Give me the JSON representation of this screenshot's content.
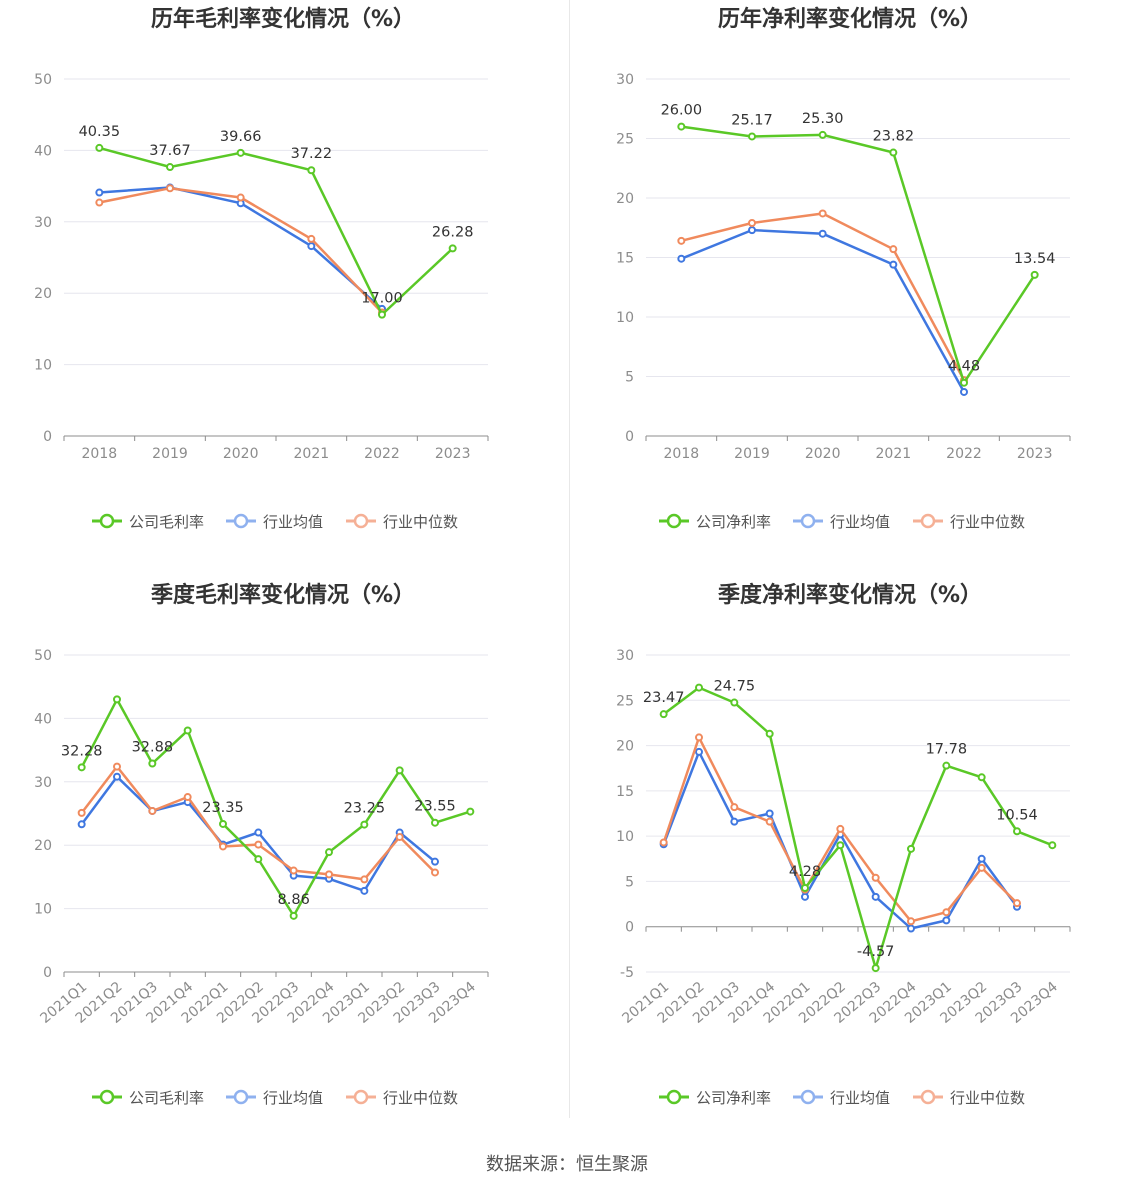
{
  "colors": {
    "company": "#5ac827",
    "avg": "#3f77e0",
    "median": "#f08a5d",
    "legend_avg": "#8fb1ef",
    "legend_median": "#f5b096"
  },
  "source": "数据来源：恒生聚源",
  "chart_data": [
    {
      "type": "line",
      "title": "历年毛利率变化情况（%）",
      "categories": [
        "2018",
        "2019",
        "2020",
        "2021",
        "2022",
        "2023"
      ],
      "ylim": [
        0,
        50
      ],
      "yticks": [
        0,
        10,
        20,
        30,
        40,
        50
      ],
      "grid": true,
      "legend_position": "bottom",
      "legend": [
        "公司毛利率",
        "行业均值",
        "行业中位数"
      ],
      "series": [
        {
          "name": "公司毛利率",
          "values": [
            40.35,
            37.67,
            39.66,
            37.22,
            17.0,
            26.28
          ],
          "labels": [
            "40.35",
            "37.67",
            "39.66",
            "37.22",
            "17.00",
            "26.28"
          ]
        },
        {
          "name": "行业均值",
          "values": [
            34.1,
            34.8,
            32.6,
            26.6,
            17.8,
            null
          ]
        },
        {
          "name": "行业中位数",
          "values": [
            32.7,
            34.7,
            33.4,
            27.6,
            17.3,
            null
          ]
        }
      ]
    },
    {
      "type": "line",
      "title": "历年净利率变化情况（%）",
      "categories": [
        "2018",
        "2019",
        "2020",
        "2021",
        "2022",
        "2023"
      ],
      "ylim": [
        0,
        30
      ],
      "yticks": [
        0,
        5,
        10,
        15,
        20,
        25,
        30
      ],
      "grid": true,
      "legend_position": "bottom",
      "legend": [
        "公司净利率",
        "行业均值",
        "行业中位数"
      ],
      "series": [
        {
          "name": "公司净利率",
          "values": [
            26.0,
            25.17,
            25.3,
            23.82,
            4.48,
            13.54
          ],
          "labels": [
            "26.00",
            "25.17",
            "25.30",
            "23.82",
            "4.48",
            "13.54"
          ]
        },
        {
          "name": "行业均值",
          "values": [
            14.9,
            17.3,
            17.0,
            14.4,
            3.7,
            null
          ]
        },
        {
          "name": "行业中位数",
          "values": [
            16.4,
            17.9,
            18.7,
            15.7,
            4.7,
            null
          ]
        }
      ]
    },
    {
      "type": "line",
      "title": "季度毛利率变化情况（%）",
      "categories": [
        "2021Q1",
        "2021Q2",
        "2021Q3",
        "2021Q4",
        "2022Q1",
        "2022Q2",
        "2022Q3",
        "2022Q4",
        "2023Q1",
        "2023Q2",
        "2023Q3",
        "2023Q4"
      ],
      "ylim": [
        0,
        50
      ],
      "yticks": [
        0,
        10,
        20,
        30,
        40,
        50
      ],
      "grid": true,
      "legend_position": "bottom",
      "legend": [
        "公司毛利率",
        "行业均值",
        "行业中位数"
      ],
      "series": [
        {
          "name": "公司毛利率",
          "values": [
            32.28,
            43.0,
            32.88,
            38.1,
            23.35,
            17.8,
            8.86,
            18.9,
            23.25,
            31.8,
            23.55,
            25.3
          ],
          "labels": [
            "32.28",
            "",
            "32.88",
            "",
            "23.35",
            "",
            "8.86",
            "",
            "23.25",
            "",
            "23.55",
            ""
          ]
        },
        {
          "name": "行业均值",
          "values": [
            23.3,
            30.8,
            25.4,
            26.8,
            20.1,
            22.0,
            15.2,
            14.7,
            12.8,
            22.0,
            17.4,
            null
          ]
        },
        {
          "name": "行业中位数",
          "values": [
            25.1,
            32.4,
            25.4,
            27.6,
            19.8,
            20.1,
            16.0,
            15.4,
            14.6,
            21.3,
            15.7,
            null
          ]
        }
      ]
    },
    {
      "type": "line",
      "title": "季度净利率变化情况（%）",
      "categories": [
        "2021Q1",
        "2021Q2",
        "2021Q3",
        "2021Q4",
        "2022Q1",
        "2022Q2",
        "2022Q3",
        "2022Q4",
        "2023Q1",
        "2023Q2",
        "2023Q3",
        "2023Q4"
      ],
      "ylim": [
        -5,
        30
      ],
      "yticks": [
        -5,
        0,
        5,
        10,
        15,
        20,
        25,
        30
      ],
      "grid": true,
      "legend_position": "bottom",
      "legend": [
        "公司净利率",
        "行业均值",
        "行业中位数"
      ],
      "series": [
        {
          "name": "公司净利率",
          "values": [
            23.47,
            26.4,
            24.75,
            21.3,
            4.28,
            9.0,
            -4.57,
            8.6,
            17.78,
            16.5,
            10.54,
            9.0
          ],
          "labels": [
            "23.47",
            "",
            "24.75",
            "",
            "4.28",
            "",
            "-4.57",
            "",
            "17.78",
            "",
            "10.54",
            ""
          ]
        },
        {
          "name": "行业均值",
          "values": [
            9.1,
            19.3,
            11.6,
            12.5,
            3.3,
            10.2,
            3.3,
            -0.2,
            0.7,
            7.5,
            2.2,
            null
          ]
        },
        {
          "name": "行业中位数",
          "values": [
            9.3,
            20.9,
            13.2,
            11.6,
            4.1,
            10.8,
            5.4,
            0.6,
            1.6,
            6.5,
            2.6,
            null
          ]
        }
      ]
    }
  ]
}
